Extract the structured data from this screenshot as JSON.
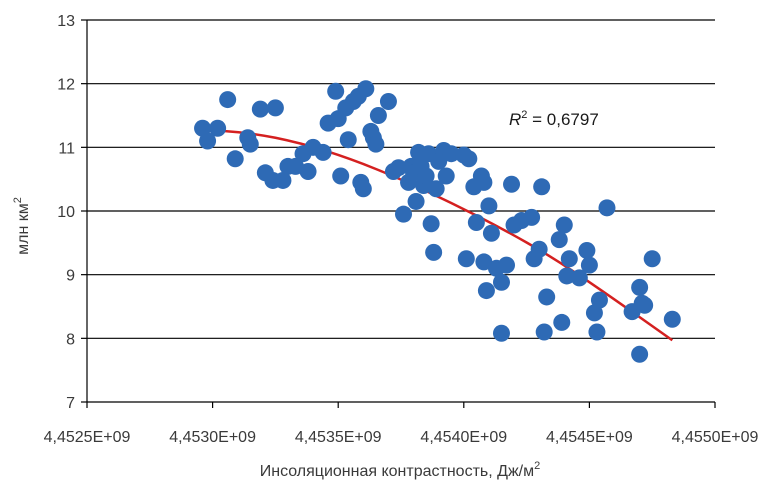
{
  "chart_data": {
    "type": "scatter",
    "title": "",
    "xlabel": "Инсоляционная контрастность, Дж/м",
    "xlabel_sup": "2",
    "ylabel": "млн  км",
    "ylabel_sup": "2",
    "xlim": [
      4452500000,
      4455000000
    ],
    "ylim": [
      7,
      13
    ],
    "x_ticks": [
      4452500000,
      4453000000,
      4453500000,
      4454000000,
      4454500000,
      4455000000
    ],
    "x_tick_labels": [
      "4,4525E+09",
      "4,4530E+09",
      "4,4535E+09",
      "4,4540E+09",
      "4,4545E+09",
      "4,4550E+09"
    ],
    "y_ticks": [
      7,
      8,
      9,
      10,
      11,
      12,
      13
    ],
    "y_tick_labels": [
      "7",
      "8",
      "9",
      "10",
      "11",
      "12",
      "13"
    ],
    "grid": "horizontal",
    "colors": {
      "points": "#2e6ab5",
      "trendline": "#d42020",
      "grid": "#000000"
    },
    "annotation": {
      "prefix": "R",
      "sup": "2",
      "text": " = 0,6797"
    },
    "points": [
      [
        4452960000,
        11.3
      ],
      [
        4452980000,
        11.1
      ],
      [
        4453020000,
        11.3
      ],
      [
        4453060000,
        11.75
      ],
      [
        4453090000,
        10.82
      ],
      [
        4453140000,
        11.15
      ],
      [
        4453150000,
        11.05
      ],
      [
        4453190000,
        11.6
      ],
      [
        4453210000,
        10.6
      ],
      [
        4453240000,
        10.48
      ],
      [
        4453250000,
        11.62
      ],
      [
        4453280000,
        10.48
      ],
      [
        4453300000,
        10.7
      ],
      [
        4453330000,
        10.7
      ],
      [
        4453360000,
        10.9
      ],
      [
        4453380000,
        10.62
      ],
      [
        4453400000,
        11.0
      ],
      [
        4453440000,
        10.92
      ],
      [
        4453460000,
        11.38
      ],
      [
        4453490000,
        11.88
      ],
      [
        4453500000,
        11.45
      ],
      [
        4453510000,
        10.55
      ],
      [
        4453530000,
        11.62
      ],
      [
        4453540000,
        11.12
      ],
      [
        4453560000,
        11.72
      ],
      [
        4453580000,
        11.8
      ],
      [
        4453590000,
        10.45
      ],
      [
        4453600000,
        10.35
      ],
      [
        4453610000,
        11.92
      ],
      [
        4453630000,
        11.25
      ],
      [
        4453640000,
        11.15
      ],
      [
        4453650000,
        11.05
      ],
      [
        4453660000,
        11.5
      ],
      [
        4453700000,
        11.72
      ],
      [
        4453720000,
        10.62
      ],
      [
        4453740000,
        10.68
      ],
      [
        4453760000,
        9.95
      ],
      [
        4453780000,
        10.45
      ],
      [
        4453790000,
        10.7
      ],
      [
        4453800000,
        10.6
      ],
      [
        4453810000,
        10.15
      ],
      [
        4453820000,
        10.92
      ],
      [
        4453830000,
        10.7
      ],
      [
        4453840000,
        10.4
      ],
      [
        4453860000,
        10.9
      ],
      [
        4453850000,
        10.55
      ],
      [
        4453870000,
        9.8
      ],
      [
        4453880000,
        9.35
      ],
      [
        4453890000,
        10.35
      ],
      [
        4453900000,
        10.78
      ],
      [
        4453920000,
        10.95
      ],
      [
        4453930000,
        10.55
      ],
      [
        4453950000,
        10.9
      ],
      [
        4454000000,
        10.88
      ],
      [
        4454010000,
        9.25
      ],
      [
        4454020000,
        10.82
      ],
      [
        4454040000,
        10.38
      ],
      [
        4454050000,
        9.82
      ],
      [
        4454070000,
        10.55
      ],
      [
        4454080000,
        10.45
      ],
      [
        4454080000,
        9.2
      ],
      [
        4454090000,
        8.75
      ],
      [
        4454100000,
        10.08
      ],
      [
        4454110000,
        9.65
      ],
      [
        4454130000,
        9.1
      ],
      [
        4454150000,
        8.88
      ],
      [
        4454150000,
        8.08
      ],
      [
        4454170000,
        9.15
      ],
      [
        4454190000,
        10.42
      ],
      [
        4454200000,
        9.78
      ],
      [
        4454230000,
        9.85
      ],
      [
        4454270000,
        9.9
      ],
      [
        4454280000,
        9.25
      ],
      [
        4454300000,
        9.4
      ],
      [
        4454310000,
        10.38
      ],
      [
        4454320000,
        8.1
      ],
      [
        4454330000,
        8.65
      ],
      [
        4454380000,
        9.55
      ],
      [
        4454390000,
        8.25
      ],
      [
        4454400000,
        9.78
      ],
      [
        4454410000,
        8.98
      ],
      [
        4454420000,
        9.25
      ],
      [
        4454460000,
        8.95
      ],
      [
        4454490000,
        9.38
      ],
      [
        4454500000,
        9.15
      ],
      [
        4454520000,
        8.4
      ],
      [
        4454530000,
        8.1
      ],
      [
        4454540000,
        8.6
      ],
      [
        4454570000,
        10.05
      ],
      [
        4454670000,
        8.42
      ],
      [
        4454700000,
        7.75
      ],
      [
        4454700000,
        8.8
      ],
      [
        4454710000,
        8.55
      ],
      [
        4454720000,
        8.52
      ],
      [
        4454750000,
        9.25
      ],
      [
        4454830000,
        8.3
      ]
    ],
    "trendline": {
      "type": "polynomial-2",
      "x_range": [
        4452950000,
        4454830000
      ],
      "points": [
        [
          4452950000,
          11.28
        ],
        [
          4453150000,
          11.23
        ],
        [
          4453350000,
          11.07
        ],
        [
          4453550000,
          10.82
        ],
        [
          4453750000,
          10.5
        ],
        [
          4453950000,
          10.13
        ],
        [
          4454150000,
          9.73
        ],
        [
          4454350000,
          9.28
        ],
        [
          4454550000,
          8.75
        ],
        [
          4454830000,
          7.97
        ]
      ]
    }
  }
}
